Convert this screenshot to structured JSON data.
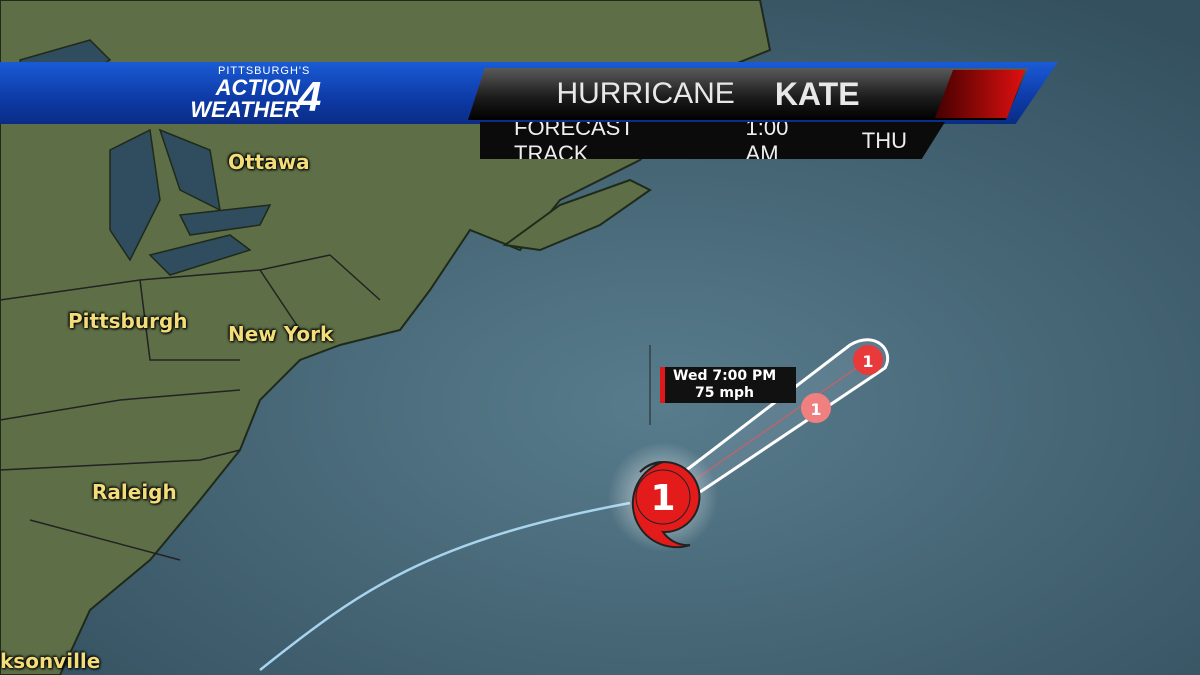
{
  "broadcast": {
    "logo": {
      "small": "PITTSBURGH'S",
      "line1": "ACTION",
      "line2": "WEATHER",
      "number": "4"
    },
    "title": {
      "prefix": "HURRICANE",
      "name": "KATE"
    },
    "subtitle": {
      "label": "FORECAST TRACK",
      "time": "1:00 AM",
      "day": "THU"
    }
  },
  "cities": [
    "Ottawa",
    "Pittsburgh",
    "New York",
    "Raleigh",
    "ksonville"
  ],
  "storm": {
    "category": "1",
    "forecast_points": [
      "1",
      "1"
    ],
    "label": {
      "time": "Wed 7:00 PM",
      "wind": "75 mph"
    },
    "color": "#e41b1b"
  },
  "colors": {
    "ocean": "#3d5a6c",
    "land": "#5d6e45",
    "bar": "#1a5bd6"
  }
}
